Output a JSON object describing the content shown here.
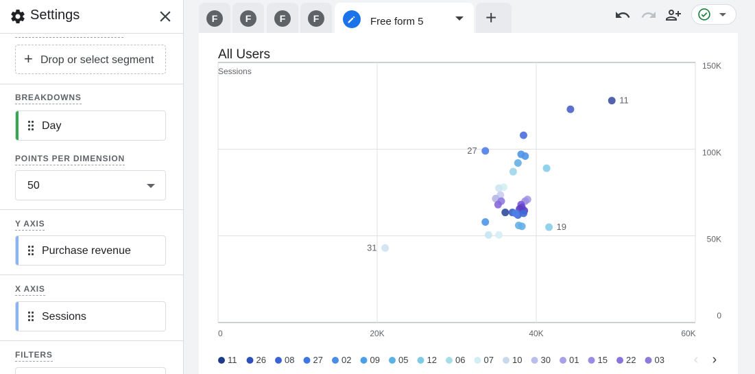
{
  "settings": {
    "title": "Settings",
    "segment_drop": "Drop or select segment",
    "breakdowns_label": "BREAKDOWNS",
    "breakdown_value": "Day",
    "points_label": "POINTS PER DIMENSION",
    "points_value": "50",
    "y_axis_label": "Y AXIS",
    "y_axis_value": "Purchase revenue",
    "x_axis_label": "X AXIS",
    "x_axis_value": "Sessions",
    "filters_label": "FILTERS"
  },
  "tabs": {
    "avatars": [
      "F",
      "F",
      "F",
      "F"
    ],
    "active_label": "Free form 5"
  },
  "colors": {
    "accent": "#1a73e8",
    "breakdown_bar": "#34a853",
    "metric_bar": "#8ab4f8"
  },
  "chart_data": {
    "type": "scatter",
    "title": "All Users",
    "xlabel": "",
    "ylabel": "Sessions",
    "xlim": [
      0,
      60000
    ],
    "ylim": [
      0,
      150000
    ],
    "x_ticks": [
      "0",
      "20K",
      "40K",
      "60K"
    ],
    "y_ticks": [
      "0",
      "50K",
      "100K",
      "150K"
    ],
    "y_axis_side": "right",
    "grid": true,
    "legend_position": "bottom",
    "legend": [
      "11",
      "26",
      "08",
      "27",
      "02",
      "09",
      "05",
      "12",
      "06",
      "07",
      "10",
      "30",
      "01",
      "15",
      "22",
      "03"
    ],
    "points": [
      {
        "x": 49500,
        "y": 128000,
        "color": "#3f51a5"
      },
      {
        "x": 44300,
        "y": 123000,
        "color": "#4a62c8"
      },
      {
        "x": 38400,
        "y": 108000,
        "color": "#4a6fdc"
      },
      {
        "x": 33600,
        "y": 99000,
        "color": "#4e7ee8"
      },
      {
        "x": 38100,
        "y": 97000,
        "color": "#4f95e8"
      },
      {
        "x": 38600,
        "y": 96000,
        "color": "#4f95e8"
      },
      {
        "x": 37700,
        "y": 92000,
        "color": "#64b0e6"
      },
      {
        "x": 41300,
        "y": 89000,
        "color": "#86cde8"
      },
      {
        "x": 37100,
        "y": 87000,
        "color": "#9ed6ea"
      },
      {
        "x": 35900,
        "y": 78000,
        "color": "#d3eef5"
      },
      {
        "x": 35300,
        "y": 77500,
        "color": "#cfe6f2"
      },
      {
        "x": 35500,
        "y": 73500,
        "color": "#c9cdee"
      },
      {
        "x": 34900,
        "y": 71500,
        "color": "#b5b7e8"
      },
      {
        "x": 38900,
        "y": 71000,
        "color": "#a99ae6"
      },
      {
        "x": 38600,
        "y": 70000,
        "color": "#9f8fe3"
      },
      {
        "x": 35600,
        "y": 70000,
        "color": "#8f7be0"
      },
      {
        "x": 35200,
        "y": 68000,
        "color": "#8767db"
      },
      {
        "x": 38100,
        "y": 68000,
        "color": "#7a5ad6"
      },
      {
        "x": 38200,
        "y": 66500,
        "color": "#6a45cc"
      },
      {
        "x": 37900,
        "y": 65500,
        "color": "#5a3fc0"
      },
      {
        "x": 38500,
        "y": 64500,
        "color": "#5b3fc8"
      },
      {
        "x": 36100,
        "y": 63500,
        "color": "#2f4a9a"
      },
      {
        "x": 37000,
        "y": 63500,
        "color": "#3a5dc4"
      },
      {
        "x": 38400,
        "y": 63000,
        "color": "#3f6ad6"
      },
      {
        "x": 37700,
        "y": 62000,
        "color": "#3f6ad6"
      },
      {
        "x": 37400,
        "y": 63000,
        "color": "#4e7ee8"
      },
      {
        "x": 33600,
        "y": 58000,
        "color": "#4f95e8"
      },
      {
        "x": 37800,
        "y": 56000,
        "color": "#64b0e6"
      },
      {
        "x": 38200,
        "y": 55500,
        "color": "#64b0e6"
      },
      {
        "x": 41600,
        "y": 55000,
        "color": "#86cde8"
      },
      {
        "x": 34000,
        "y": 50500,
        "color": "#c5e7f3"
      },
      {
        "x": 35300,
        "y": 50500,
        "color": "#d6eef6"
      },
      {
        "x": 21000,
        "y": 43000,
        "color": "#cfe2f3"
      }
    ],
    "annotations": [
      {
        "label": "11",
        "x": 49500,
        "y": 128000,
        "side": "right"
      },
      {
        "label": "27",
        "x": 33600,
        "y": 99000,
        "side": "left"
      },
      {
        "label": "19",
        "x": 41600,
        "y": 55000,
        "side": "right"
      },
      {
        "label": "31",
        "x": 21000,
        "y": 43000,
        "side": "left"
      }
    ],
    "legend_colors": [
      "#1e3a8a",
      "#2f4fbf",
      "#3b63d6",
      "#3f76e6",
      "#4a8de6",
      "#4aa0e8",
      "#5ab2e4",
      "#7fcae5",
      "#a9dceb",
      "#d2eef5",
      "#c7d9ec",
      "#b9bfea",
      "#a9a0e8",
      "#9a8be4",
      "#8a74e0",
      "#8e7ad8"
    ]
  }
}
